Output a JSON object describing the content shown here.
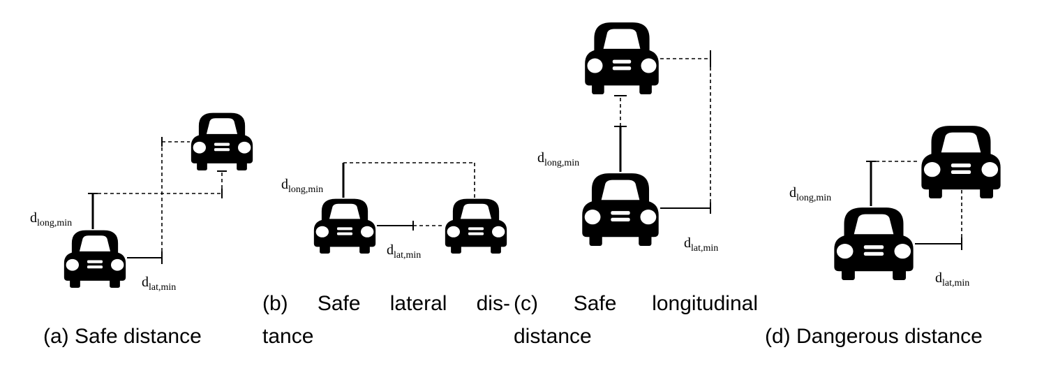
{
  "labels": {
    "d_long": "d",
    "d_long_sub": "long,min",
    "d_lat": "d",
    "d_lat_sub": "lat,min"
  },
  "captions": {
    "a": "(a) Safe distance",
    "b_words": [
      "(b)",
      "Safe",
      "lateral",
      "dis-"
    ],
    "b_line2": "tance",
    "c_words": [
      "(c)",
      "Safe",
      "longitudinal"
    ],
    "c_line2": "distance",
    "d": "(d) Dangerous distance"
  }
}
